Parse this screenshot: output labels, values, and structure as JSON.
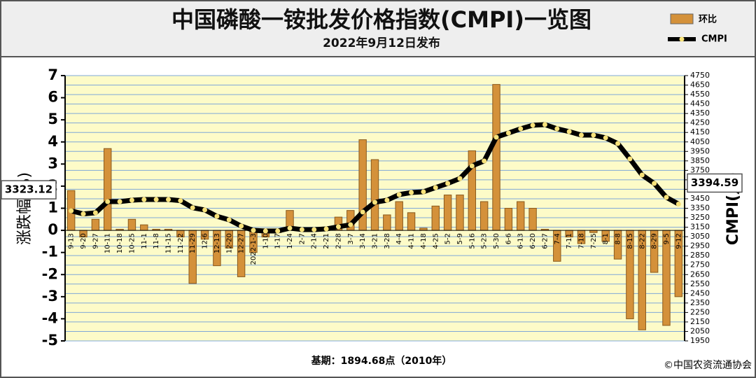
{
  "chart_data": {
    "type": "bar-line",
    "title": "中国磷酸一铵批发价格指数(CMPI)一览图",
    "subtitle": "2022年9月12日发布",
    "y_label": "涨跌幅(%)",
    "y2_label": "CMPI(点)",
    "footnote": "基期：1894.68点（2010年）",
    "source": "©中国农资流通协会",
    "categories": [
      "9-13",
      "9-20",
      "9-27",
      "10-11",
      "10-18",
      "10-25",
      "11-1",
      "11-8",
      "11-15",
      "11-22",
      "11-29",
      "12-6",
      "12-13",
      "12-20",
      "12-27",
      "2022-1-3",
      "1-10",
      "1-17",
      "1-24",
      "2-7",
      "2-14",
      "2-21",
      "2-28",
      "3-7",
      "3-14",
      "3-21",
      "3-28",
      "4-4",
      "4-11",
      "4-18",
      "4-25",
      "5-2",
      "5-9",
      "5-16",
      "5-23",
      "5-30",
      "6-6",
      "6-13",
      "6-20",
      "6-27",
      "7-4",
      "7-11",
      "7-18",
      "7-25",
      "8-1",
      "8-8",
      "8-15",
      "8-22",
      "8-29",
      "9-5",
      "9-12"
    ],
    "series": [
      {
        "name": "环比",
        "type": "bar",
        "color": "#d4913a",
        "values": [
          1.8,
          -0.3,
          0.5,
          3.7,
          0.05,
          0.5,
          0.25,
          0.05,
          0.05,
          -0.3,
          -2.4,
          -0.4,
          -1.6,
          -0.8,
          -2.1,
          -1.0,
          -0.3,
          -0.1,
          0.9,
          0.05,
          0.05,
          0.05,
          0.6,
          0.9,
          4.1,
          3.2,
          0.7,
          1.3,
          0.8,
          0.1,
          1.1,
          1.6,
          1.6,
          3.6,
          1.3,
          6.6,
          1.0,
          1.3,
          1.0,
          0.05,
          -1.4,
          -0.3,
          -0.6,
          -0.1,
          -0.5,
          -1.3,
          -4.0,
          -4.5,
          -1.9,
          -4.3,
          -3.0
        ]
      },
      {
        "name": "CMPI",
        "type": "line",
        "axis": "y2",
        "color": "#000000",
        "values": [
          3323.12,
          3290,
          3302,
          3420,
          3420,
          3435,
          3442,
          3442,
          3442,
          3430,
          3355,
          3332,
          3265,
          3228,
          3162,
          3117,
          3110,
          3110,
          3140,
          3125,
          3125,
          3132,
          3155,
          3176,
          3310,
          3413,
          3435,
          3494,
          3516,
          3524,
          3568,
          3612,
          3664,
          3797,
          3849,
          4100,
          4144,
          4189,
          4226,
          4233,
          4189,
          4159,
          4122,
          4122,
          4093,
          4033,
          3871,
          3701,
          3612,
          3465,
          3394.59
        ]
      }
    ],
    "ylim": [
      -5,
      7
    ],
    "yticks": [
      -5,
      -4,
      -3,
      -2,
      -1,
      0,
      1,
      2,
      3,
      4,
      5,
      6,
      7
    ],
    "y2lim": [
      1950,
      4750
    ],
    "y2ticks": [
      1950,
      2050,
      2150,
      2250,
      2350,
      2450,
      2550,
      2650,
      2750,
      2850,
      2950,
      3050,
      3150,
      3250,
      3350,
      3450,
      3550,
      3650,
      3750,
      3850,
      3950,
      4050,
      4150,
      4250,
      4350,
      4450,
      4550,
      4650,
      4750
    ],
    "grid": true
  }
}
